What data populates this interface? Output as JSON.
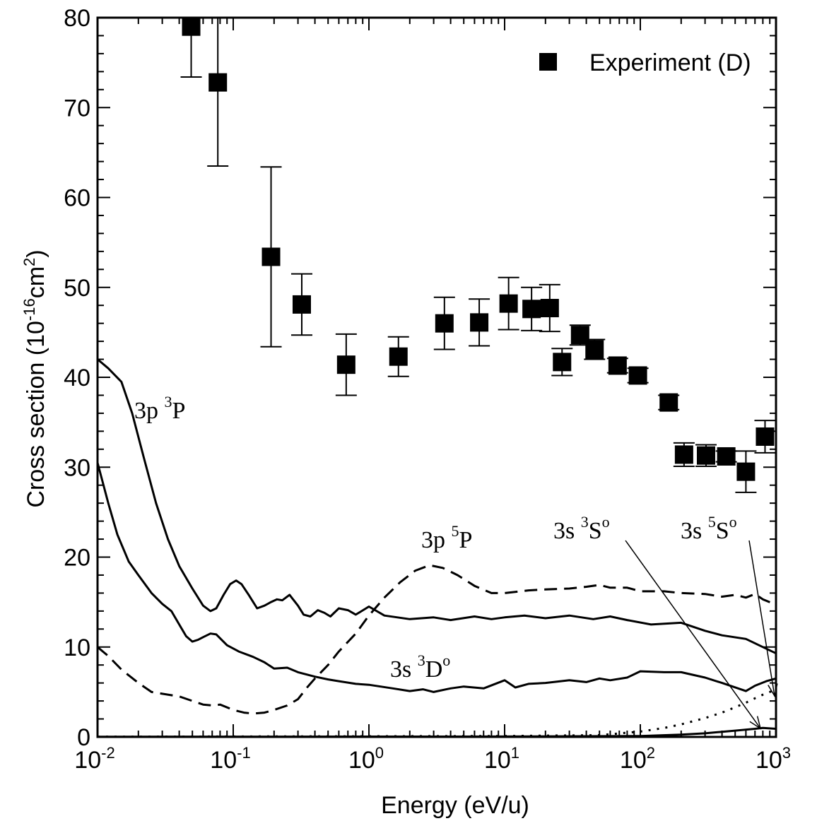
{
  "chart_data": {
    "type": "scatter",
    "xlabel": "Energy (eV/u)",
    "ylabel": "Cross section (10",
    "ylabel_exp": "-16",
    "ylabel_unit": "cm",
    "ylabel_unit_exp": "2",
    "ylabel_close": ")",
    "x_scale": "log",
    "xlim": [
      0.01,
      1000
    ],
    "ylim": [
      0,
      80
    ],
    "grid": false,
    "legend_position": "top-right",
    "x_ticks": [
      {
        "base": "10",
        "exp": "-2",
        "value": 0.01
      },
      {
        "base": "10",
        "exp": "-1",
        "value": 0.1
      },
      {
        "base": "10",
        "exp": "0",
        "value": 1
      },
      {
        "base": "10",
        "exp": "1",
        "value": 10
      },
      {
        "base": "10",
        "exp": "2",
        "value": 100
      },
      {
        "base": "10",
        "exp": "3",
        "value": 1000
      }
    ],
    "y_ticks": [
      "0",
      "10",
      "20",
      "30",
      "40",
      "50",
      "60",
      "70",
      "80"
    ],
    "experiment": {
      "name": "Experiment (D)",
      "points": [
        {
          "x": 0.049,
          "y": 79.0,
          "lo": 73.4,
          "hi": 80
        },
        {
          "x": 0.077,
          "y": 72.8,
          "lo": 63.5,
          "hi": 82
        },
        {
          "x": 0.19,
          "y": 53.4,
          "lo": 43.4,
          "hi": 63.4
        },
        {
          "x": 0.32,
          "y": 48.1,
          "lo": 44.7,
          "hi": 51.5
        },
        {
          "x": 0.68,
          "y": 41.4,
          "lo": 38.0,
          "hi": 44.8
        },
        {
          "x": 1.65,
          "y": 42.3,
          "lo": 40.1,
          "hi": 44.5
        },
        {
          "x": 3.6,
          "y": 46.0,
          "lo": 43.1,
          "hi": 48.9
        },
        {
          "x": 6.5,
          "y": 46.1,
          "lo": 43.5,
          "hi": 48.7
        },
        {
          "x": 10.7,
          "y": 48.2,
          "lo": 45.3,
          "hi": 51.1
        },
        {
          "x": 15.8,
          "y": 47.6,
          "lo": 45.2,
          "hi": 50.0
        },
        {
          "x": 21.5,
          "y": 47.7,
          "lo": 45.1,
          "hi": 50.3
        },
        {
          "x": 26.5,
          "y": 41.7,
          "lo": 40.2,
          "hi": 43.2
        },
        {
          "x": 36,
          "y": 44.7,
          "lo": 43.6,
          "hi": 45.8
        },
        {
          "x": 46,
          "y": 43.1,
          "lo": 42.0,
          "hi": 44.2
        },
        {
          "x": 68,
          "y": 41.3,
          "lo": 40.5,
          "hi": 42.1
        },
        {
          "x": 96,
          "y": 40.2,
          "lo": 39.4,
          "hi": 41.0
        },
        {
          "x": 162,
          "y": 37.2,
          "lo": 36.4,
          "hi": 38.0
        },
        {
          "x": 210,
          "y": 31.4,
          "lo": 30.1,
          "hi": 32.7
        },
        {
          "x": 305,
          "y": 31.3,
          "lo": 30.1,
          "hi": 32.5
        },
        {
          "x": 430,
          "y": 31.2,
          "lo": 30.6,
          "hi": 31.8
        },
        {
          "x": 600,
          "y": 29.5,
          "lo": 27.2,
          "hi": 31.8
        },
        {
          "x": 830,
          "y": 33.4,
          "lo": 31.6,
          "hi": 35.2
        }
      ]
    },
    "series": [
      {
        "label_main": "3p ",
        "label_sup": "3",
        "label_end": "P",
        "style": "solid",
        "points": [
          [
            0.01,
            42
          ],
          [
            0.012,
            41
          ],
          [
            0.015,
            39.5
          ],
          [
            0.018,
            36
          ],
          [
            0.022,
            31
          ],
          [
            0.027,
            26
          ],
          [
            0.033,
            22
          ],
          [
            0.04,
            19
          ],
          [
            0.05,
            16.5
          ],
          [
            0.06,
            14.6
          ],
          [
            0.068,
            14
          ],
          [
            0.075,
            14.3
          ],
          [
            0.085,
            15.8
          ],
          [
            0.095,
            17
          ],
          [
            0.105,
            17.4
          ],
          [
            0.115,
            17
          ],
          [
            0.13,
            15.8
          ],
          [
            0.15,
            14.3
          ],
          [
            0.17,
            14.6
          ],
          [
            0.19,
            15
          ],
          [
            0.21,
            15.3
          ],
          [
            0.23,
            15.2
          ],
          [
            0.26,
            15.8
          ],
          [
            0.3,
            14.6
          ],
          [
            0.33,
            13.6
          ],
          [
            0.37,
            13.4
          ],
          [
            0.42,
            14.1
          ],
          [
            0.47,
            13.8
          ],
          [
            0.52,
            13.4
          ],
          [
            0.6,
            14.3
          ],
          [
            0.7,
            14.1
          ],
          [
            0.8,
            13.6
          ],
          [
            1.0,
            14.5
          ],
          [
            1.3,
            13.5
          ],
          [
            2,
            13.1
          ],
          [
            3,
            13.3
          ],
          [
            4,
            13.0
          ],
          [
            6,
            13.4
          ],
          [
            8,
            13.1
          ],
          [
            10,
            13.3
          ],
          [
            14,
            13.5
          ],
          [
            20,
            13.2
          ],
          [
            30,
            13.5
          ],
          [
            45,
            13.1
          ],
          [
            60,
            13.4
          ],
          [
            80,
            13.0
          ],
          [
            120,
            12.5
          ],
          [
            200,
            12.7
          ],
          [
            300,
            11.8
          ],
          [
            400,
            11.3
          ],
          [
            600,
            10.9
          ],
          [
            800,
            10.0
          ],
          [
            1000,
            9.3
          ]
        ]
      },
      {
        "label_main": "3s ",
        "label_sup": "3",
        "label_end": "D",
        "label_sup2": "o",
        "style": "solid",
        "points": [
          [
            0.01,
            30.5
          ],
          [
            0.012,
            26
          ],
          [
            0.014,
            22.5
          ],
          [
            0.017,
            19.5
          ],
          [
            0.02,
            18
          ],
          [
            0.025,
            16
          ],
          [
            0.03,
            14.8
          ],
          [
            0.035,
            14
          ],
          [
            0.04,
            12.5
          ],
          [
            0.045,
            11.2
          ],
          [
            0.05,
            10.6
          ],
          [
            0.055,
            10.8
          ],
          [
            0.06,
            11.1
          ],
          [
            0.068,
            11.5
          ],
          [
            0.075,
            11.4
          ],
          [
            0.09,
            10.2
          ],
          [
            0.11,
            9.5
          ],
          [
            0.14,
            8.9
          ],
          [
            0.17,
            8.3
          ],
          [
            0.2,
            7.6
          ],
          [
            0.25,
            7.7
          ],
          [
            0.3,
            7.2
          ],
          [
            0.4,
            6.7
          ],
          [
            0.5,
            6.4
          ],
          [
            0.6,
            6.2
          ],
          [
            0.8,
            5.9
          ],
          [
            1,
            5.8
          ],
          [
            1.5,
            5.4
          ],
          [
            2,
            5.1
          ],
          [
            2.5,
            5.3
          ],
          [
            3,
            5.0
          ],
          [
            4,
            5.4
          ],
          [
            5,
            5.6
          ],
          [
            7,
            5.4
          ],
          [
            10,
            6.3
          ],
          [
            12,
            5.5
          ],
          [
            15,
            5.9
          ],
          [
            20,
            6.0
          ],
          [
            30,
            6.3
          ],
          [
            40,
            6.1
          ],
          [
            50,
            6.5
          ],
          [
            60,
            6.3
          ],
          [
            80,
            6.6
          ],
          [
            100,
            7.3
          ],
          [
            150,
            7.2
          ],
          [
            200,
            7.2
          ],
          [
            300,
            6.6
          ],
          [
            400,
            6.0
          ],
          [
            600,
            5.1
          ],
          [
            700,
            5.7
          ],
          [
            850,
            6.2
          ],
          [
            1000,
            6.5
          ]
        ]
      },
      {
        "label_main": "3p ",
        "label_sup": "5",
        "label_end": "P",
        "style": "dashed",
        "points": [
          [
            0.01,
            10
          ],
          [
            0.012,
            9
          ],
          [
            0.015,
            7.5
          ],
          [
            0.02,
            6
          ],
          [
            0.025,
            5
          ],
          [
            0.03,
            4.8
          ],
          [
            0.04,
            4.5
          ],
          [
            0.05,
            4
          ],
          [
            0.06,
            3.6
          ],
          [
            0.07,
            3.5
          ],
          [
            0.08,
            3.6
          ],
          [
            0.1,
            3
          ],
          [
            0.12,
            2.7
          ],
          [
            0.14,
            2.6
          ],
          [
            0.17,
            2.7
          ],
          [
            0.2,
            3
          ],
          [
            0.25,
            3.5
          ],
          [
            0.3,
            4.2
          ],
          [
            0.35,
            5.5
          ],
          [
            0.4,
            6.5
          ],
          [
            0.5,
            8
          ],
          [
            0.6,
            9.5
          ],
          [
            0.8,
            11.5
          ],
          [
            1,
            13.5
          ],
          [
            1.3,
            15.5
          ],
          [
            1.7,
            17.2
          ],
          [
            2.2,
            18.5
          ],
          [
            2.8,
            19.1
          ],
          [
            3.5,
            18.8
          ],
          [
            4.5,
            18
          ],
          [
            6,
            16.8
          ],
          [
            8,
            16
          ],
          [
            10,
            16
          ],
          [
            15,
            16.3
          ],
          [
            20,
            16.4
          ],
          [
            30,
            16.5
          ],
          [
            40,
            16.7
          ],
          [
            50,
            16.9
          ],
          [
            60,
            16.6
          ],
          [
            80,
            16.6
          ],
          [
            100,
            16.2
          ],
          [
            150,
            16.2
          ],
          [
            200,
            16.0
          ],
          [
            300,
            15.9
          ],
          [
            400,
            15.6
          ],
          [
            500,
            15.8
          ],
          [
            600,
            15.5
          ],
          [
            700,
            15.9
          ],
          [
            800,
            15.3
          ],
          [
            1000,
            14.7
          ]
        ]
      },
      {
        "label_main": "3s ",
        "label_sup": "5",
        "label_end": "S",
        "label_sup2": "o",
        "style": "dotted",
        "points": [
          [
            0.01,
            0.02
          ],
          [
            10,
            0.1
          ],
          [
            50,
            0.2
          ],
          [
            100,
            0.6
          ],
          [
            150,
            1
          ],
          [
            200,
            1.4
          ],
          [
            300,
            2.1
          ],
          [
            400,
            2.7
          ],
          [
            500,
            3.3
          ],
          [
            600,
            3.8
          ],
          [
            700,
            4.3
          ],
          [
            800,
            4.7
          ],
          [
            900,
            5.0
          ],
          [
            1000,
            5.3
          ]
        ]
      },
      {
        "label_main": "3s ",
        "label_sup": "3",
        "label_end": "S",
        "label_sup2": "o",
        "style": "solid",
        "points": [
          [
            0.01,
            0.02
          ],
          [
            10,
            0.05
          ],
          [
            100,
            0.1
          ],
          [
            200,
            0.25
          ],
          [
            300,
            0.4
          ],
          [
            500,
            0.7
          ],
          [
            700,
            0.9
          ],
          [
            800,
            1.0
          ],
          [
            1000,
            0.9
          ]
        ]
      }
    ]
  }
}
